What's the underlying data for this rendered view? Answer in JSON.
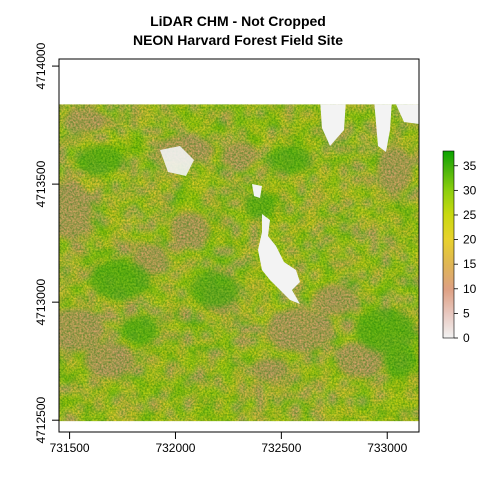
{
  "chart_data": {
    "type": "heatmap",
    "title": "LiDAR CHM - Not Cropped",
    "subtitle": "NEON Harvard Forest Field Site",
    "xlim": [
      731450,
      733150
    ],
    "ylim": [
      4712450,
      4714030
    ],
    "x_ticks": [
      731500,
      732000,
      732500,
      733000
    ],
    "x_tick_labels": [
      "731500",
      "732000",
      "732500",
      "733000"
    ],
    "y_ticks": [
      4712500,
      4713000,
      4713500,
      4714000
    ],
    "y_tick_labels": [
      "4712500",
      "4713000",
      "4713500",
      "4714000"
    ],
    "raster_extent": {
      "xmin": 731450,
      "xmax": 733150,
      "ymin": 4712496,
      "ymax": 4713838
    },
    "legend": {
      "placement": "right",
      "ticks": [
        0,
        5,
        10,
        15,
        20,
        25,
        30,
        35
      ],
      "tick_labels": [
        "0",
        "5",
        "10",
        "15",
        "20",
        "25",
        "30",
        "35"
      ],
      "range": [
        0,
        38
      ],
      "colors": [
        "#f2f2f2",
        "#e4bdb3",
        "#d99a6e",
        "#dfb556",
        "#e9d52a",
        "#c7d90f",
        "#7ec80e",
        "#34a00b",
        "#00a600"
      ]
    },
    "grid": false
  }
}
